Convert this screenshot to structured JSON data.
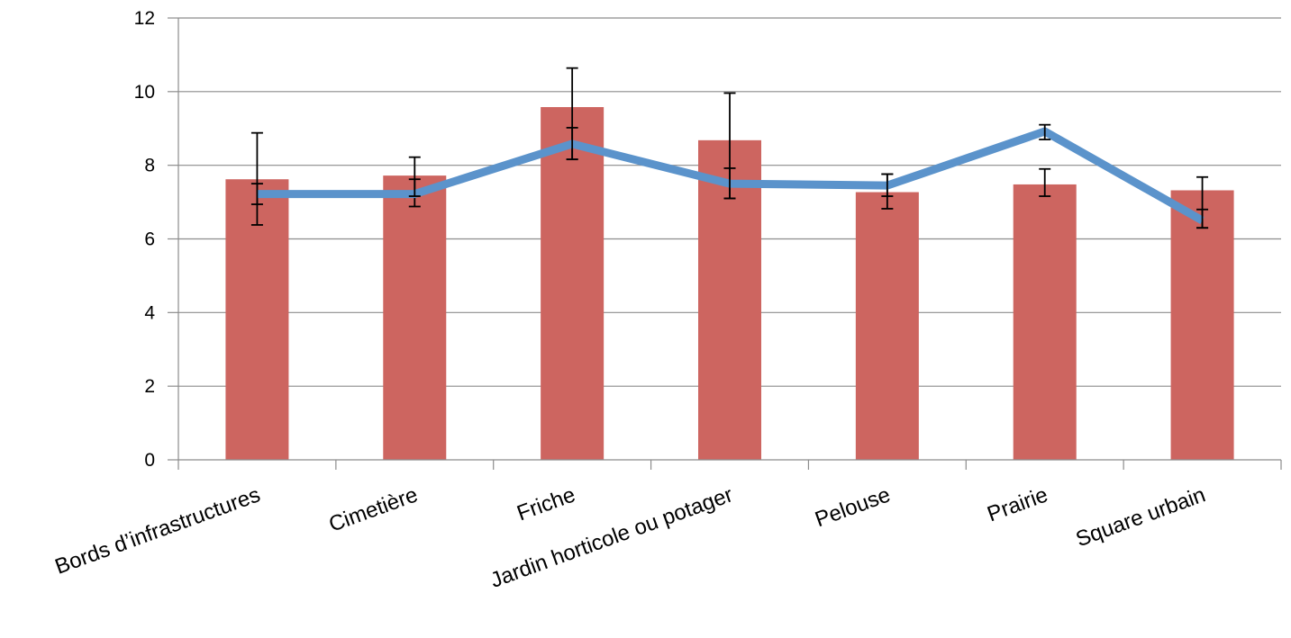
{
  "chart_data": {
    "type": "bar",
    "categories": [
      "Bords d’infrastructures",
      "Cimetière",
      "Friche",
      "Jardin horticole ou potager",
      "Pelouse",
      "Prairie",
      "Square urbain"
    ],
    "ylim": [
      0,
      12
    ],
    "yticks": [
      "0",
      "2",
      "4",
      "6",
      "8",
      "10",
      "12"
    ],
    "grid": true,
    "series": [
      {
        "kind": "bar",
        "color": "#cd6560",
        "values": [
          7.62,
          7.72,
          9.58,
          8.68,
          7.27,
          7.48,
          7.32
        ],
        "error_low": [
          6.38,
          6.88,
          8.16,
          7.1,
          6.82,
          7.16,
          6.3
        ],
        "error_high": [
          8.88,
          8.22,
          10.64,
          9.96,
          7.76,
          7.9,
          7.68
        ]
      },
      {
        "kind": "line",
        "color": "#5b93cb",
        "values": [
          7.22,
          7.22,
          8.58,
          7.5,
          7.45,
          8.92,
          6.5
        ],
        "error_low": [
          6.94,
          7.16,
          8.16,
          7.1,
          7.16,
          8.7,
          6.3
        ],
        "error_high": [
          7.5,
          7.62,
          9.02,
          7.92,
          7.76,
          9.1,
          6.8
        ]
      }
    ]
  }
}
